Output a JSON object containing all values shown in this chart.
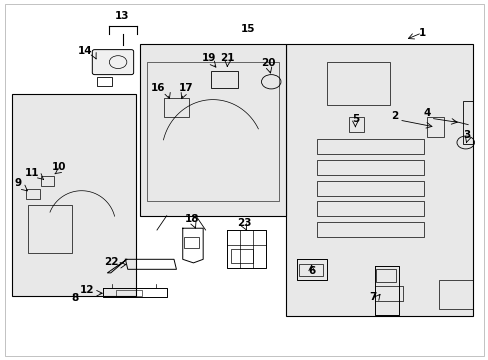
{
  "bg_color": "#ffffff",
  "line_color": "#000000",
  "fill_color": "#e8e8e8",
  "label_fontsize": 7.5,
  "lw": 0.8
}
